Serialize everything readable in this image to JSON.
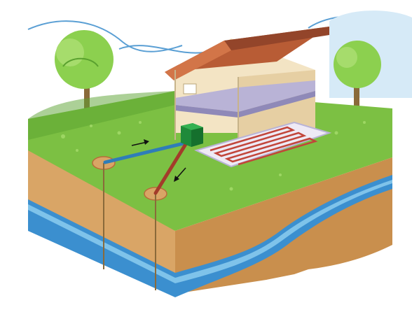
{
  "scene": {
    "subject": "geothermal-heat-pump-cutaway",
    "colors": {
      "sky_blue": "#cfe6f5",
      "grass_top": "#7cc043",
      "grass_dark": "#5aa12f",
      "soil_front": "#d9a566",
      "soil_side": "#c98f4d",
      "aquifer": "#3b8fcf",
      "aquifer_light": "#7fc3ea",
      "wall": "#f3e4c4",
      "wall_side": "#e6cfa3",
      "roof": "#b85c35",
      "roof_dark": "#93452a",
      "floor_slab": "#b9b3d6",
      "heat_pump": "#1f8a3a",
      "supply_pipe": "#2f7db8",
      "return_pipe": "#a33b2a",
      "floor_coil": "#c2453a",
      "tree_leaves": "#8cd04f"
    },
    "icons": {
      "flow_arrow": "arrow-icon",
      "heat_pump": "heat-pump-icon",
      "tree": "tree-icon",
      "house": "house-icon"
    }
  }
}
